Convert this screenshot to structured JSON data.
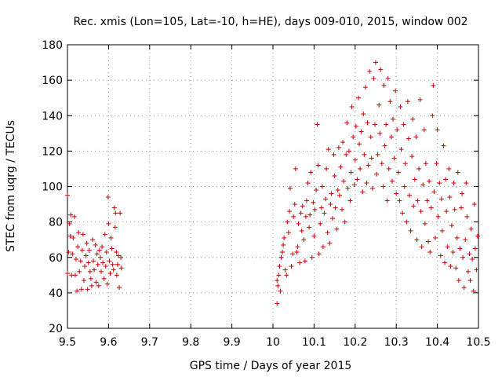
{
  "chart_data": {
    "type": "scatter",
    "title": "Rec. xmis (Lon=105, Lat=-10, h=HE), days 009-010, 2015, window 002",
    "xlabel": "GPS time / Days of year 2015",
    "ylabel": "STEC from uqrg / TECUs",
    "xlim": [
      9.5,
      10.5
    ],
    "ylim": [
      20,
      180
    ],
    "xticks": [
      "9.5",
      "9.6",
      "9.7",
      "9.8",
      "9.9",
      "10",
      "10.1",
      "10.2",
      "10.3",
      "10.4",
      "10.5"
    ],
    "yticks": [
      "20",
      "40",
      "60",
      "80",
      "100",
      "120",
      "140",
      "160",
      "180"
    ],
    "grid": true,
    "marker": "+",
    "color": "#cc0000",
    "series": [
      {
        "name": "",
        "points": [
          [
            9.5,
            95
          ],
          [
            9.5,
            51
          ],
          [
            9.503,
            63
          ],
          [
            9.505,
            79
          ],
          [
            9.507,
            72
          ],
          [
            9.508,
            84
          ],
          [
            9.51,
            50
          ],
          [
            9.512,
            62
          ],
          [
            9.514,
            71
          ],
          [
            9.517,
            83
          ],
          [
            9.519,
            50
          ],
          [
            9.521,
            59
          ],
          [
            9.523,
            41
          ],
          [
            9.525,
            66
          ],
          [
            9.527,
            74
          ],
          [
            9.529,
            52
          ],
          [
            9.532,
            58
          ],
          [
            9.534,
            42
          ],
          [
            9.536,
            64
          ],
          [
            9.538,
            73
          ],
          [
            9.54,
            47
          ],
          [
            9.542,
            55
          ],
          [
            9.545,
            61
          ],
          [
            9.547,
            68
          ],
          [
            9.549,
            42
          ],
          [
            9.551,
            57
          ],
          [
            9.553,
            64
          ],
          [
            9.555,
            52
          ],
          [
            9.557,
            48
          ],
          [
            9.559,
            44
          ],
          [
            9.561,
            70
          ],
          [
            9.563,
            58
          ],
          [
            9.565,
            53
          ],
          [
            9.568,
            67
          ],
          [
            9.57,
            46
          ],
          [
            9.572,
            62
          ],
          [
            9.574,
            56
          ],
          [
            9.576,
            44
          ],
          [
            9.578,
            64
          ],
          [
            9.58,
            60
          ],
          [
            9.582,
            52
          ],
          [
            9.584,
            66
          ],
          [
            9.586,
            57
          ],
          [
            9.589,
            48
          ],
          [
            9.591,
            73
          ],
          [
            9.593,
            55
          ],
          [
            9.595,
            63
          ],
          [
            9.597,
            45
          ],
          [
            9.599,
            94
          ],
          [
            9.6,
            79
          ],
          [
            9.602,
            58
          ],
          [
            9.604,
            51
          ],
          [
            9.606,
            71
          ],
          [
            9.608,
            65
          ],
          [
            9.61,
            56
          ],
          [
            9.612,
            53
          ],
          [
            9.614,
            88
          ],
          [
            9.616,
            77
          ],
          [
            9.617,
            85
          ],
          [
            9.619,
            63
          ],
          [
            9.62,
            50
          ],
          [
            9.622,
            56
          ],
          [
            9.624,
            61
          ],
          [
            9.626,
            43
          ],
          [
            9.628,
            85
          ],
          [
            9.63,
            60
          ],
          [
            9.631,
            54
          ],
          [
            10.01,
            34
          ],
          [
            10.01,
            47
          ],
          [
            10.012,
            44
          ],
          [
            10.014,
            50
          ],
          [
            10.016,
            55
          ],
          [
            10.018,
            41
          ],
          [
            10.02,
            60
          ],
          [
            10.023,
            63
          ],
          [
            10.025,
            67
          ],
          [
            10.027,
            71
          ],
          [
            10.03,
            53
          ],
          [
            10.033,
            50
          ],
          [
            10.035,
            80
          ],
          [
            10.038,
            74
          ],
          [
            10.04,
            86
          ],
          [
            10.042,
            99
          ],
          [
            10.045,
            55
          ],
          [
            10.048,
            62
          ],
          [
            10.05,
            83
          ],
          [
            10.053,
            90
          ],
          [
            10.055,
            110
          ],
          [
            10.058,
            63
          ],
          [
            10.06,
            66
          ],
          [
            10.062,
            79
          ],
          [
            10.065,
            57
          ],
          [
            10.068,
            85
          ],
          [
            10.07,
            75
          ],
          [
            10.072,
            89
          ],
          [
            10.075,
            70
          ],
          [
            10.078,
            58
          ],
          [
            10.08,
            83
          ],
          [
            10.082,
            92
          ],
          [
            10.085,
            102
          ],
          [
            10.088,
            77
          ],
          [
            10.09,
            84
          ],
          [
            10.092,
            108
          ],
          [
            10.095,
            60
          ],
          [
            10.098,
            91
          ],
          [
            10.1,
            72
          ],
          [
            10.102,
            87
          ],
          [
            10.105,
            98
          ],
          [
            10.108,
            135
          ],
          [
            10.11,
            112
          ],
          [
            10.112,
            62
          ],
          [
            10.115,
            79
          ],
          [
            10.118,
            88
          ],
          [
            10.12,
            100
          ],
          [
            10.122,
            66
          ],
          [
            10.125,
            85
          ],
          [
            10.128,
            93
          ],
          [
            10.13,
            110
          ],
          [
            10.133,
            74
          ],
          [
            10.135,
            121
          ],
          [
            10.138,
            68
          ],
          [
            10.14,
            90
          ],
          [
            10.142,
            96
          ],
          [
            10.145,
            82
          ],
          [
            10.148,
            118
          ],
          [
            10.15,
            106
          ],
          [
            10.152,
            88
          ],
          [
            10.155,
            76
          ],
          [
            10.158,
            98
          ],
          [
            10.16,
            122
          ],
          [
            10.162,
            95
          ],
          [
            10.165,
            111
          ],
          [
            10.168,
            87
          ],
          [
            10.17,
            125
          ],
          [
            10.172,
            103
          ],
          [
            10.175,
            80
          ],
          [
            10.178,
            118
          ],
          [
            10.18,
            136
          ],
          [
            10.182,
            99
          ],
          [
            10.185,
            120
          ],
          [
            10.188,
            92
          ],
          [
            10.19,
            108
          ],
          [
            10.192,
            145
          ],
          [
            10.195,
            128
          ],
          [
            10.198,
            101
          ],
          [
            10.2,
            115
          ],
          [
            10.202,
            134
          ],
          [
            10.205,
            104
          ],
          [
            10.208,
            150
          ],
          [
            10.21,
            124
          ],
          [
            10.212,
            110
          ],
          [
            10.215,
            131
          ],
          [
            10.218,
            97
          ],
          [
            10.22,
            141
          ],
          [
            10.222,
            118
          ],
          [
            10.225,
            156
          ],
          [
            10.228,
            102
          ],
          [
            10.23,
            136
          ],
          [
            10.232,
            112
          ],
          [
            10.235,
            165
          ],
          [
            10.238,
            128
          ],
          [
            10.24,
            116
          ],
          [
            10.242,
            99
          ],
          [
            10.245,
            161
          ],
          [
            10.248,
            135
          ],
          [
            10.25,
            170
          ],
          [
            10.252,
            107
          ],
          [
            10.255,
            118
          ],
          [
            10.258,
            146
          ],
          [
            10.26,
            130
          ],
          [
            10.262,
            166
          ],
          [
            10.265,
            113
          ],
          [
            10.268,
            100
          ],
          [
            10.27,
            157
          ],
          [
            10.272,
            123
          ],
          [
            10.275,
            135
          ],
          [
            10.278,
            92
          ],
          [
            10.28,
            161
          ],
          [
            10.282,
            110
          ],
          [
            10.285,
            148
          ],
          [
            10.288,
            128
          ],
          [
            10.29,
            103
          ],
          [
            10.292,
            138
          ],
          [
            10.295,
            116
          ],
          [
            10.298,
            154
          ],
          [
            10.3,
            96
          ],
          [
            10.302,
            132
          ],
          [
            10.305,
            108
          ],
          [
            10.308,
            92
          ],
          [
            10.31,
            145
          ],
          [
            10.312,
            121
          ],
          [
            10.315,
            85
          ],
          [
            10.318,
            135
          ],
          [
            10.32,
            100
          ],
          [
            10.322,
            113
          ],
          [
            10.325,
            80
          ],
          [
            10.328,
            148
          ],
          [
            10.33,
            127
          ],
          [
            10.332,
            95
          ],
          [
            10.335,
            75
          ],
          [
            10.338,
            117
          ],
          [
            10.34,
            138
          ],
          [
            10.342,
            89
          ],
          [
            10.345,
            104
          ],
          [
            10.348,
            128
          ],
          [
            10.35,
            70
          ],
          [
            10.352,
            92
          ],
          [
            10.355,
            110
          ],
          [
            10.358,
            149
          ],
          [
            10.36,
            86
          ],
          [
            10.362,
            66
          ],
          [
            10.365,
            101
          ],
          [
            10.368,
            132
          ],
          [
            10.37,
            79
          ],
          [
            10.372,
            113
          ],
          [
            10.375,
            92
          ],
          [
            10.378,
            69
          ],
          [
            10.38,
            103
          ],
          [
            10.382,
            63
          ],
          [
            10.385,
            88
          ],
          [
            10.388,
            140
          ],
          [
            10.39,
            157
          ],
          [
            10.392,
            97
          ],
          [
            10.395,
            71
          ],
          [
            10.398,
            113
          ],
          [
            10.4,
            132
          ],
          [
            10.402,
            83
          ],
          [
            10.405,
            102
          ],
          [
            10.408,
            61
          ],
          [
            10.41,
            93
          ],
          [
            10.412,
            75
          ],
          [
            10.415,
            123
          ],
          [
            10.418,
            57
          ],
          [
            10.42,
            104
          ],
          [
            10.422,
            86
          ],
          [
            10.425,
            66
          ],
          [
            10.428,
            110
          ],
          [
            10.43,
            94
          ],
          [
            10.432,
            55
          ],
          [
            10.435,
            78
          ],
          [
            10.438,
            63
          ],
          [
            10.44,
            102
          ],
          [
            10.442,
            87
          ],
          [
            10.445,
            54
          ],
          [
            10.448,
            71
          ],
          [
            10.45,
            108
          ],
          [
            10.452,
            47
          ],
          [
            10.455,
            65
          ],
          [
            10.458,
            88
          ],
          [
            10.46,
            96
          ],
          [
            10.462,
            60
          ],
          [
            10.465,
            43
          ],
          [
            10.468,
            70
          ],
          [
            10.47,
            102
          ],
          [
            10.472,
            83
          ],
          [
            10.475,
            52
          ],
          [
            10.478,
            62
          ],
          [
            10.48,
            47
          ],
          [
            10.482,
            76
          ],
          [
            10.485,
            59
          ],
          [
            10.488,
            41
          ],
          [
            10.49,
            90
          ],
          [
            10.492,
            65
          ],
          [
            10.495,
            53
          ],
          [
            10.498,
            72
          ]
        ]
      }
    ]
  }
}
